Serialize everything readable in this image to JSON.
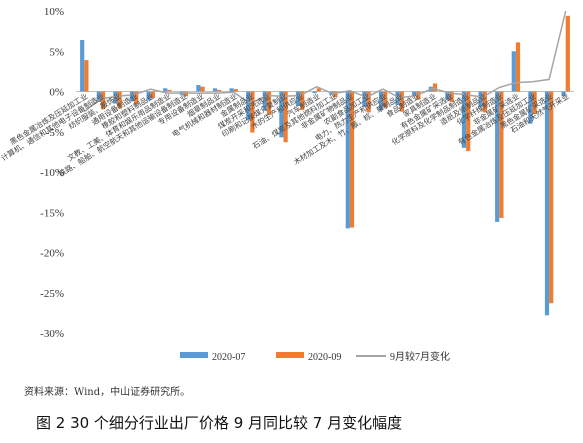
{
  "chart_data": {
    "type": "bar",
    "ylim": [
      -30,
      10
    ],
    "yticks": [
      "10%",
      "5%",
      "0%",
      "-5%",
      "-10%",
      "-15%",
      "-20%",
      "-25%",
      "-30%"
    ],
    "grid": false,
    "legend_position": "bottom",
    "categories": [
      "黑色金属冶炼及压延加工业",
      "计算机、通信和其他电子设备制造业",
      "纺织服装、服饰业",
      "通用设备制造业",
      "橡胶和塑料制品业",
      "文教、工美、体育和娱乐用品制造业",
      "铁路、船舶、航空航天和其他运输设备制造业",
      "专用设备制造业",
      "烟草制品业",
      "电气机械和器材制造业",
      "金属制品业",
      "煤炭开采和洗选业",
      "印刷和记录媒介复制业",
      "水的生产和供应业",
      "汽车制造业",
      "石油、煤炭及其他燃料加工业",
      "非金属矿物制品业",
      "农副食品加工业",
      "电力、热力生产和供应业",
      "木材加工及木、竹、藤、棕、草制品业",
      "食品制造业",
      "家具制造业",
      "有色金属矿采选业",
      "化学原料及化学制品制造业",
      "造纸及纸制品业",
      "化学纤维制造业",
      "非金属矿采选业",
      "有色金属冶炼及压延加工业",
      "黑色金属矿采选业",
      "石油和天然气开采业"
    ],
    "series": [
      {
        "name": "2020-07",
        "color": "#5b9bd5",
        "values": [
          6.4,
          -1.3,
          -1.5,
          -1.2,
          -1.1,
          0.4,
          -0.4,
          0.8,
          0.4,
          0.4,
          -3.6,
          -2.4,
          -5.7,
          -1.8,
          -0.2,
          -0.4,
          -17.0,
          -1.9,
          -2.3,
          -1.7,
          -0.5,
          0.6,
          -1.1,
          -7.0,
          -1.9,
          -16.2,
          5.0,
          -4.0,
          -27.8,
          -0.6
        ]
      },
      {
        "name": "2020-09",
        "color": "#ed7d31",
        "values": [
          3.9,
          -2.2,
          -2.1,
          -1.6,
          -0.8,
          0.2,
          -0.6,
          0.6,
          0.2,
          0.3,
          -5.1,
          -2.9,
          -6.3,
          -2.3,
          0.4,
          -0.7,
          -16.9,
          -2.6,
          -2.0,
          -2.5,
          -1.0,
          1.0,
          -1.3,
          -7.4,
          -2.6,
          -15.7,
          6.1,
          -2.8,
          -26.3,
          9.4
        ]
      },
      {
        "name": "9月较7月变化",
        "color": "#a5a5a5",
        "values": [
          -2.5,
          -0.9,
          -0.6,
          -0.4,
          0.3,
          -0.2,
          -0.2,
          -0.2,
          -0.2,
          -0.1,
          -1.5,
          -0.5,
          -0.6,
          -0.5,
          0.6,
          -0.3,
          0.1,
          -0.7,
          0.3,
          -0.8,
          -0.5,
          0.4,
          -0.2,
          -0.4,
          -0.7,
          0.5,
          1.1,
          1.2,
          1.5,
          10.0
        ]
      }
    ]
  },
  "source_text": "资料来源：Wind，中山证券研究所。",
  "caption": "图 2 30 个细分行业出厂价格 9 月同比较 7 月变化幅度"
}
